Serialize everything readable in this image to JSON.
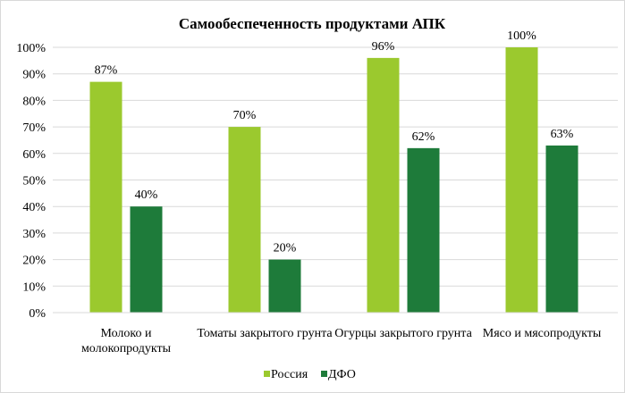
{
  "chart_data": {
    "type": "bar",
    "title": "Самообеспеченность продуктами АПК",
    "categories": [
      [
        "Молоко и",
        "молокопродукты"
      ],
      [
        "Томаты закрытого грунта"
      ],
      [
        "Огурцы закрытого грунта"
      ],
      [
        "Мясо и мясопродукты"
      ]
    ],
    "series": [
      {
        "name": "Россия",
        "values": [
          87,
          70,
          96,
          100
        ],
        "labels": [
          "87%",
          "70%",
          "96%",
          "100%"
        ],
        "color": "#9BC92E"
      },
      {
        "name": "ДФО",
        "values": [
          40,
          20,
          62,
          63
        ],
        "labels": [
          "40%",
          "20%",
          "62%",
          "63%"
        ],
        "color": "#1E7B3A"
      }
    ],
    "yticks": [
      "0%",
      "10%",
      "20%",
      "30%",
      "40%",
      "50%",
      "60%",
      "70%",
      "80%",
      "90%",
      "100%"
    ],
    "ylim": [
      0,
      100
    ],
    "grid": true,
    "legend": "bottom",
    "xlabel": "",
    "ylabel": ""
  }
}
